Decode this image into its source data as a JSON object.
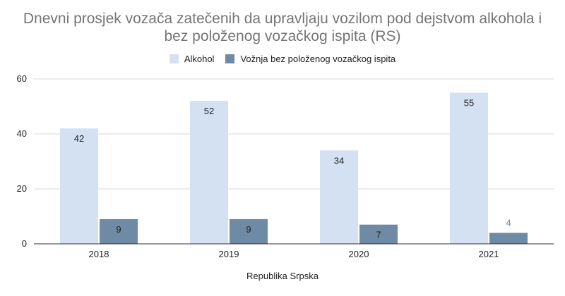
{
  "chart_data": {
    "type": "bar",
    "title_lines": [
      "Dnevni prosjek vozača zatečenih da upravljaju vozilom pod dejstvom alkohola i",
      "bez položenog vozačkog ispita (RS)"
    ],
    "xlabel": "Republika Srpska",
    "ylabel": "",
    "categories": [
      "2018",
      "2019",
      "2020",
      "2021"
    ],
    "series": [
      {
        "name": "Alkohol",
        "values": [
          42,
          52,
          34,
          55
        ],
        "color": "#d3e1f3",
        "label_color": "#222222"
      },
      {
        "name": "Vožnja bez položenog vozačkog ispita",
        "values": [
          9,
          9,
          7,
          4
        ],
        "color": "#6e8aa5",
        "label_color": "#222222",
        "outside_label_color": "#6e8aa5"
      }
    ],
    "ylim": [
      0,
      60
    ],
    "yticks": [
      "0",
      "20",
      "40",
      "60"
    ],
    "grid": true,
    "legend_position": "top"
  }
}
